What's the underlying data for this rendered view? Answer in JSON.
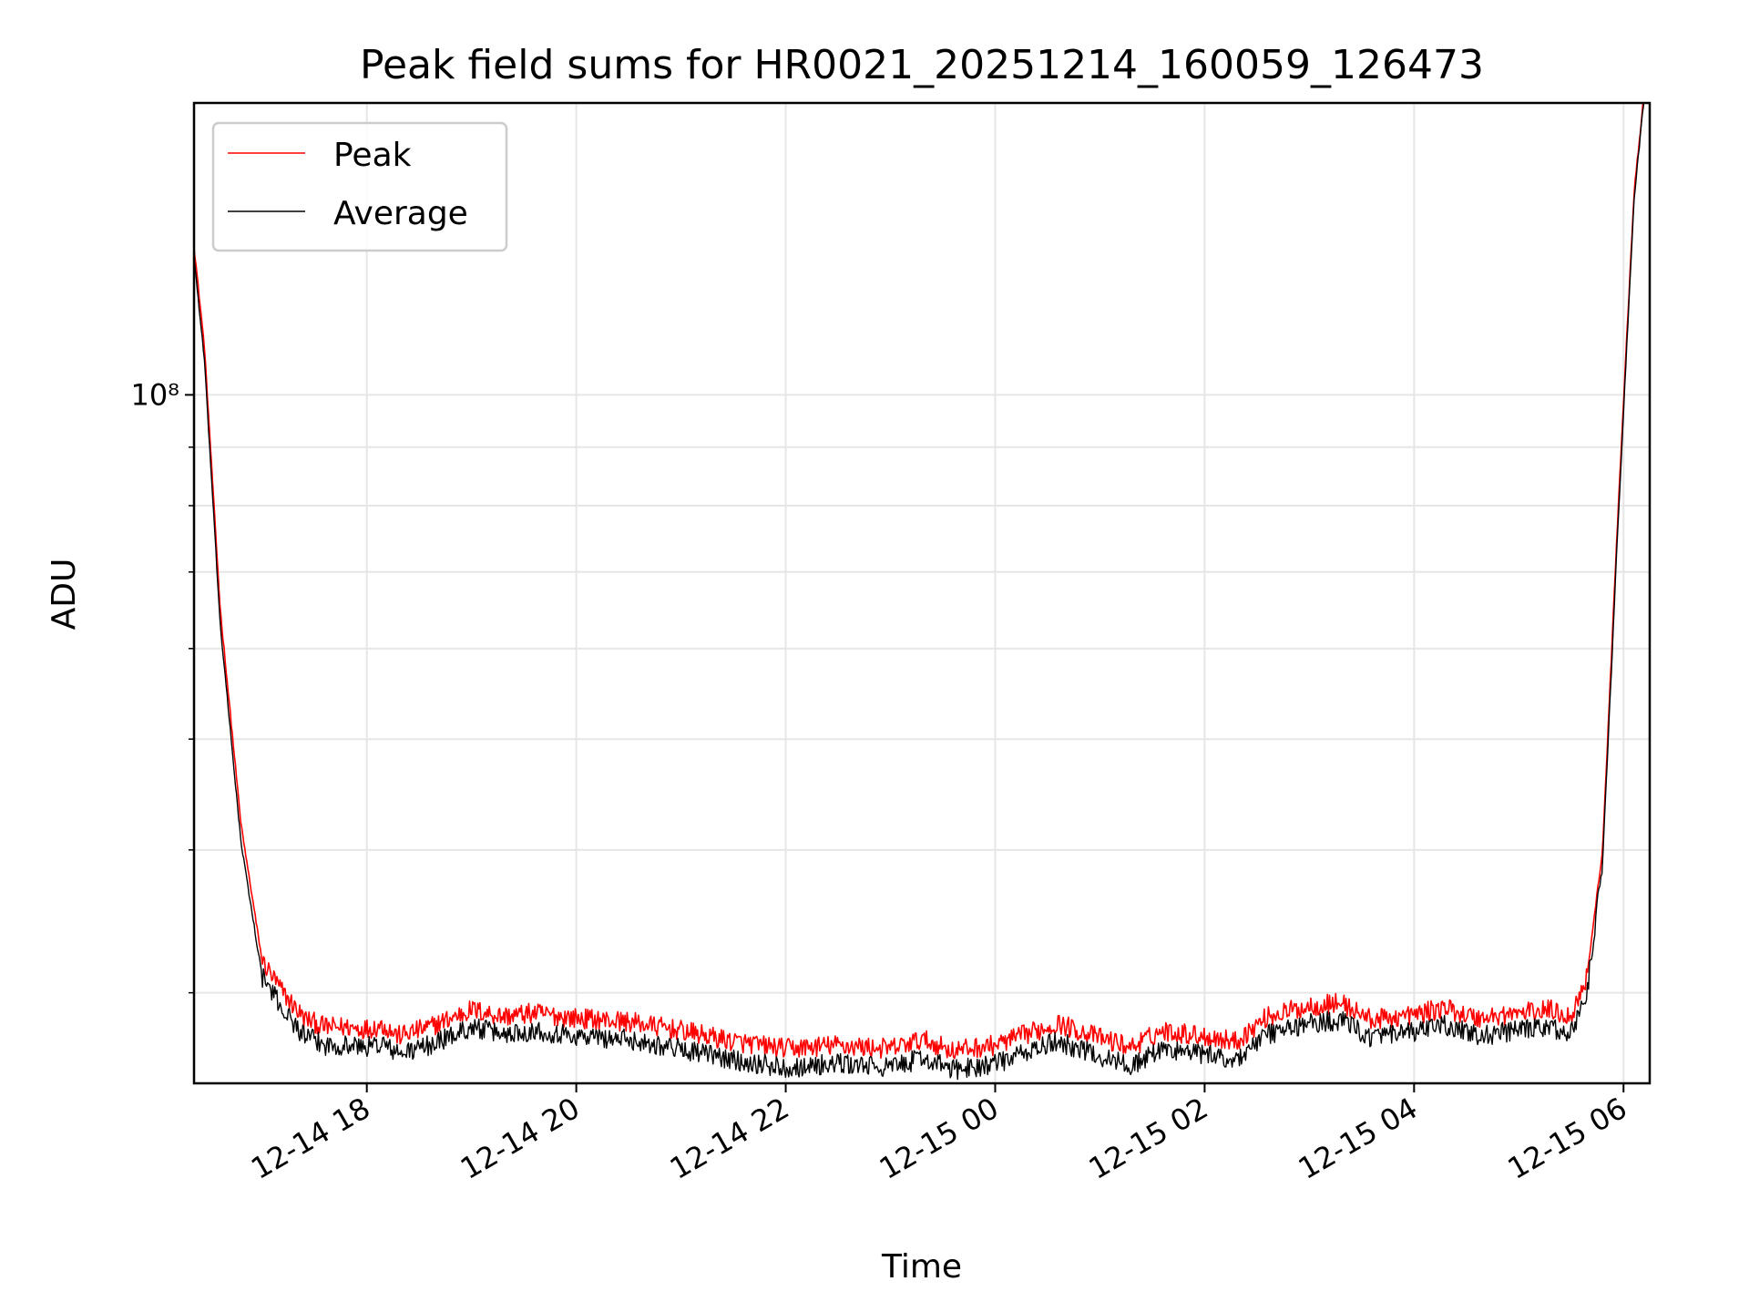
{
  "chart_data": {
    "type": "line",
    "title": "Peak field sums for HR0021_20251214_160059_126473",
    "xlabel": "Time",
    "ylabel": "ADU",
    "yscale": "log",
    "ylim": [
      25000000,
      180000000
    ],
    "xlim_hours": [
      16.35,
      30.25
    ],
    "x_tick_values": [
      18,
      20,
      22,
      24,
      26,
      28,
      30
    ],
    "x_tick_labels": [
      "12-14 18",
      "12-14 20",
      "12-14 22",
      "12-15 00",
      "12-15 02",
      "12-15 04",
      "12-15 06"
    ],
    "y_major_ticks": [
      100000000
    ],
    "y_major_tick_labels": [
      "10⁸"
    ],
    "y_minor_ticks": [
      30000000,
      40000000,
      50000000,
      60000000,
      70000000,
      80000000,
      90000000,
      200000000
    ],
    "grid": true,
    "legend_position": "upper-left",
    "series": [
      {
        "name": "Peak",
        "color": "#ff0000",
        "x_hours": [
          16.35,
          16.45,
          16.6,
          16.8,
          17.0,
          17.2,
          17.4,
          17.6,
          17.8,
          18.0,
          18.15,
          18.3,
          18.6,
          19.0,
          19.3,
          19.6,
          20.0,
          20.5,
          21.0,
          21.5,
          22.0,
          22.5,
          23.0,
          23.3,
          23.6,
          24.0,
          24.3,
          24.6,
          25.0,
          25.3,
          25.6,
          26.0,
          26.3,
          26.6,
          27.0,
          27.3,
          27.6,
          28.0,
          28.3,
          28.6,
          29.0,
          29.3,
          29.5,
          29.65,
          29.8,
          29.95,
          30.1,
          30.2
        ],
        "values": [
          135000000,
          110000000,
          65000000,
          42000000,
          32000000,
          30000000,
          28500000,
          28000000,
          28000000,
          27900000,
          28100000,
          27500000,
          28000000,
          29000000,
          28600000,
          28800000,
          28500000,
          28300000,
          27800000,
          27200000,
          26800000,
          27000000,
          26800000,
          27300000,
          26700000,
          27000000,
          27600000,
          28200000,
          27400000,
          26900000,
          27800000,
          27500000,
          27200000,
          28600000,
          29200000,
          29400000,
          28400000,
          28700000,
          29100000,
          28500000,
          28800000,
          29000000,
          28600000,
          31000000,
          40000000,
          80000000,
          150000000,
          185000000
        ]
      },
      {
        "name": "Average",
        "color": "#000000",
        "x_hours": [
          16.35,
          16.45,
          16.6,
          16.8,
          17.0,
          17.2,
          17.4,
          17.6,
          17.8,
          18.0,
          18.15,
          18.3,
          18.6,
          19.0,
          19.3,
          19.6,
          20.0,
          20.5,
          21.0,
          21.5,
          22.0,
          22.5,
          23.0,
          23.3,
          23.6,
          24.0,
          24.3,
          24.6,
          25.0,
          25.3,
          25.6,
          26.0,
          26.3,
          26.6,
          27.0,
          27.3,
          27.6,
          28.0,
          28.3,
          28.6,
          29.0,
          29.3,
          29.5,
          29.65,
          29.8,
          29.95,
          30.1,
          30.2
        ],
        "values": [
          132000000,
          107000000,
          63000000,
          40500000,
          31000000,
          29000000,
          27500000,
          27000000,
          27000000,
          26900000,
          27100000,
          26500000,
          27000000,
          28000000,
          27600000,
          27800000,
          27500000,
          27300000,
          26800000,
          26200000,
          25800000,
          26000000,
          25800000,
          26300000,
          25700000,
          26000000,
          26600000,
          27200000,
          26400000,
          25900000,
          26800000,
          26500000,
          26200000,
          27600000,
          28200000,
          28400000,
          27400000,
          27700000,
          28100000,
          27500000,
          27800000,
          28000000,
          27600000,
          30000000,
          39000000,
          78000000,
          148000000,
          183000000
        ]
      }
    ]
  }
}
